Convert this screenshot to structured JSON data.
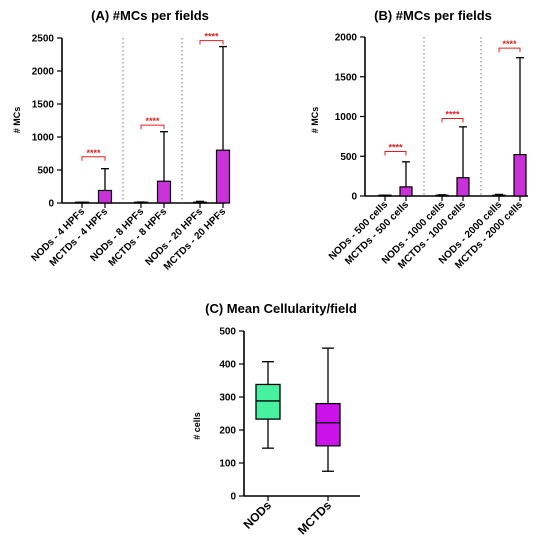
{
  "chart_data": [
    {
      "panel": "A",
      "type": "bar",
      "title": "(A) #MCs per fields",
      "ylabel": "# MCs",
      "ylim": [
        0,
        2500
      ],
      "yticks": [
        0,
        500,
        1000,
        1500,
        2000,
        2500
      ],
      "groups": [
        {
          "bars": [
            {
              "label": "NODs - 4 HPFs",
              "value": 3,
              "whisker": 10,
              "color": "#d62fd6"
            },
            {
              "label": "MCTDs - 4 HPFs",
              "value": 190,
              "whisker": 520,
              "color": "#c832d8"
            }
          ],
          "significance": "****",
          "sig_y": 700
        },
        {
          "bars": [
            {
              "label": "NODs - 8 HPFs",
              "value": 5,
              "whisker": 15,
              "color": "#d62fd6"
            },
            {
              "label": "MCTDs - 8 HPFs",
              "value": 330,
              "whisker": 1080,
              "color": "#c832d8"
            }
          ],
          "significance": "****",
          "sig_y": 1180
        },
        {
          "bars": [
            {
              "label": "NODs - 20 HPFs",
              "value": 10,
              "whisker": 25,
              "color": "#d62fd6"
            },
            {
              "label": "MCTDs - 20 HPFs",
              "value": 800,
              "whisker": 2370,
              "color": "#c832d8"
            }
          ],
          "significance": "****",
          "sig_y": 2460
        }
      ]
    },
    {
      "panel": "B",
      "type": "bar",
      "title": "(B) #MCs per fields",
      "ylabel": "# MCs",
      "ylim": [
        0,
        2000
      ],
      "yticks": [
        0,
        500,
        1000,
        1500,
        2000
      ],
      "groups": [
        {
          "bars": [
            {
              "label": "NODs - 500 cells",
              "value": 3,
              "whisker": 10,
              "color": "#d62fd6"
            },
            {
              "label": "MCTDs - 500 cells",
              "value": 115,
              "whisker": 430,
              "color": "#c832d8"
            }
          ],
          "significance": "****",
          "sig_y": 560
        },
        {
          "bars": [
            {
              "label": "NODs - 1000 cells",
              "value": 5,
              "whisker": 15,
              "color": "#d62fd6"
            },
            {
              "label": "MCTDs - 1000 cells",
              "value": 230,
              "whisker": 870,
              "color": "#c832d8"
            }
          ],
          "significance": "****",
          "sig_y": 975
        },
        {
          "bars": [
            {
              "label": "NODs - 2000 cells",
              "value": 8,
              "whisker": 20,
              "color": "#d62fd6"
            },
            {
              "label": "MCTDs - 2000 cells",
              "value": 520,
              "whisker": 1740,
              "color": "#c832d8"
            }
          ],
          "significance": "****",
          "sig_y": 1860
        }
      ]
    },
    {
      "panel": "C",
      "type": "boxplot",
      "title": "(C) Mean Cellularity/field",
      "ylabel": "# cells",
      "ylim": [
        0,
        500
      ],
      "yticks": [
        0,
        100,
        200,
        300,
        400,
        500
      ],
      "boxes": [
        {
          "label": "NODs",
          "min": 145,
          "q1": 233,
          "median": 288,
          "q3": 338,
          "max": 407,
          "color": "#46f2a0"
        },
        {
          "label": "MCTDs",
          "min": 75,
          "q1": 152,
          "median": 222,
          "q3": 280,
          "max": 448,
          "color": "#cc12ea"
        }
      ]
    }
  ]
}
